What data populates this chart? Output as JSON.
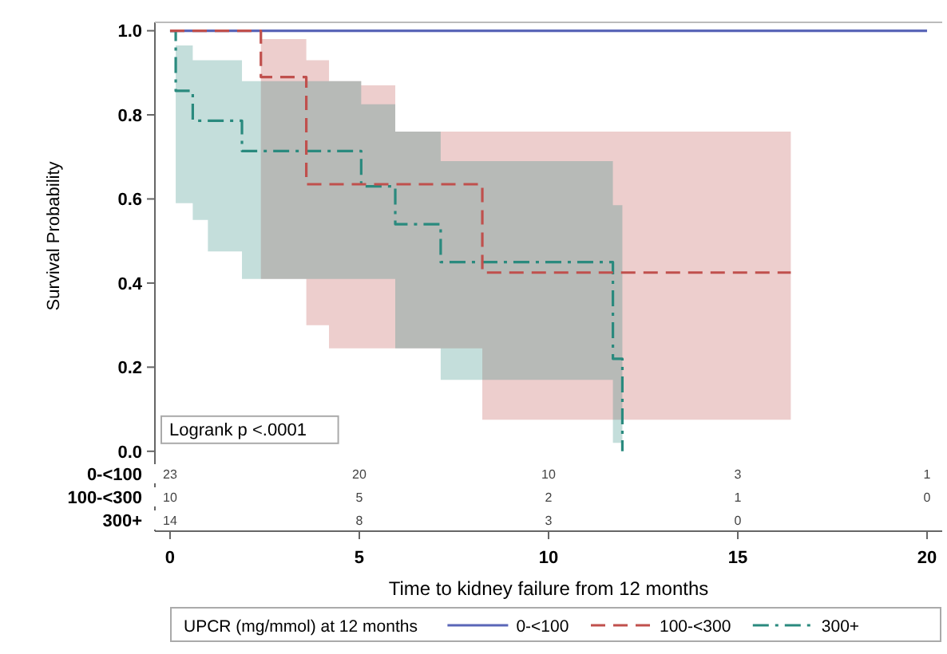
{
  "chart_data": [
    {
      "type": "step",
      "xlabel": "Time to kidney failure from 12 months",
      "ylabel": "Survival Probability",
      "xlim": [
        -0.4,
        20.4
      ],
      "ylim": [
        -0.19,
        1.02
      ],
      "xticks": [
        0,
        5,
        10,
        15,
        20
      ],
      "yticks": [
        {
          "value": 0,
          "label": "0.0"
        },
        {
          "value": 0.2,
          "label": "0.2"
        },
        {
          "value": 0.4,
          "label": "0.4"
        },
        {
          "value": 0.6,
          "label": "0.6"
        },
        {
          "value": 0.8,
          "label": "0.8"
        },
        {
          "value": 1,
          "label": "1.0"
        }
      ],
      "legend": "bottom",
      "legend_title": "UPCR (mg/mmol) at 12 months",
      "grid": false,
      "annotations": [
        "Logrank p <.0001"
      ],
      "series": [
        {
          "name": "0-<100",
          "color": "#5a66b8",
          "line_style": "solid",
          "x": [
            0,
            20
          ],
          "values": [
            1,
            1
          ]
        },
        {
          "name": "100-<300",
          "color": "#c0504d",
          "line_style": "dashed",
          "x": [
            0,
            2.4,
            3.6,
            4.2,
            5.05,
            5.95,
            8.25,
            16.4
          ],
          "values": [
            1,
            0.89,
            0.635,
            0.635,
            0.635,
            0.635,
            0.425,
            0.425
          ],
          "upper": [
            null,
            0.98,
            0.93,
            0.88,
            0.87,
            0.76,
            0.76,
            0.76
          ],
          "lower": [
            null,
            0.41,
            0.3,
            0.245,
            0.245,
            0.245,
            0.075,
            0.075
          ]
        },
        {
          "name": "300+",
          "color": "#2a8a7e",
          "line_style": "dashdot",
          "x": [
            0,
            0.15,
            0.6,
            1,
            1.9,
            5.05,
            5.95,
            7.15,
            11.7,
            11.95
          ],
          "values": [
            1,
            0.857,
            0.786,
            0.786,
            0.714,
            0.63,
            0.54,
            0.45,
            0.22,
            0
          ],
          "upper": [
            null,
            0.965,
            0.93,
            0.93,
            0.88,
            0.825,
            0.76,
            0.69,
            0.585,
            0.585
          ],
          "lower": [
            null,
            0.59,
            0.55,
            0.475,
            0.41,
            0.41,
            0.245,
            0.17,
            0.02,
            0.02
          ]
        }
      ]
    },
    {
      "type": "heatmap",
      "categories": [
        null,
        null,
        null,
        null,
        null
      ],
      "y_categories": [
        "0-<100",
        "100-<300",
        "300+"
      ],
      "data_labels": true,
      "cells": [
        [
          23,
          20,
          10,
          3,
          1
        ],
        [
          10,
          5,
          2,
          1,
          0
        ],
        [
          14,
          8,
          3,
          0,
          null
        ]
      ]
    }
  ]
}
